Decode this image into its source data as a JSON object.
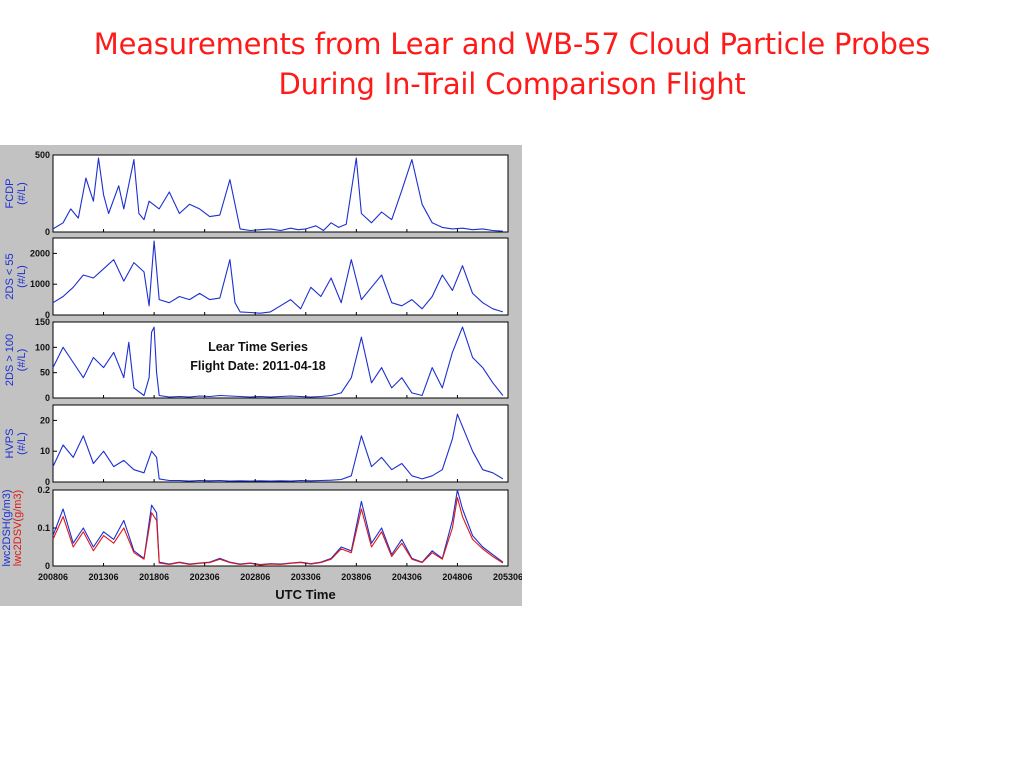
{
  "title": {
    "line1": "Measurements from Lear and WB-57 Cloud Particle Probes",
    "line2": "During In-Trail Comparison Flight"
  },
  "colors": {
    "title": "#ff1a1a",
    "series_blue": "#1d2fd0",
    "series_red": "#e01818",
    "figure_bg": "#c2c2c2"
  },
  "chart_data": {
    "type": "line",
    "annotation": {
      "line1": "Lear Time Series",
      "line2": "Flight Date: 2011-04-18"
    },
    "xlabel": "UTC Time",
    "x_ticks": [
      "200806",
      "201306",
      "201806",
      "202306",
      "202806",
      "203306",
      "203806",
      "204306",
      "204806",
      "205306"
    ],
    "xlim": [
      0,
      9
    ],
    "grid": false,
    "panels": [
      {
        "ylabel_lines": [
          "FCDP",
          "(#/L)"
        ],
        "ylim": [
          0,
          500
        ],
        "yticks": [
          "500",
          "0"
        ],
        "series": [
          {
            "color": "#1d2fd0",
            "x": [
              0,
              0.2,
              0.35,
              0.5,
              0.65,
              0.8,
              0.9,
              1.0,
              1.1,
              1.3,
              1.4,
              1.6,
              1.7,
              1.8,
              1.9,
              2.1,
              2.3,
              2.5,
              2.7,
              2.9,
              3.1,
              3.3,
              3.5,
              3.7,
              3.9,
              4.1,
              4.3,
              4.5,
              4.7,
              4.85,
              5.0,
              5.2,
              5.35,
              5.5,
              5.65,
              5.8,
              6.0,
              6.1,
              6.3,
              6.5,
              6.7,
              6.9,
              7.1,
              7.3,
              7.5,
              7.7,
              7.9,
              8.1,
              8.3,
              8.5,
              8.7,
              8.9
            ],
            "y": [
              20,
              60,
              150,
              90,
              350,
              200,
              480,
              240,
              120,
              300,
              150,
              470,
              120,
              80,
              200,
              150,
              260,
              120,
              180,
              150,
              100,
              110,
              340,
              20,
              10,
              15,
              20,
              10,
              25,
              15,
              20,
              40,
              10,
              60,
              30,
              50,
              480,
              120,
              60,
              130,
              80,
              270,
              470,
              180,
              60,
              30,
              20,
              25,
              15,
              20,
              10,
              5
            ]
          }
        ]
      },
      {
        "ylabel_lines": [
          "2DS < 55",
          "(#/L)"
        ],
        "ylim": [
          0,
          2500
        ],
        "yticks": [
          "2000",
          "1000",
          "0"
        ],
        "series": [
          {
            "color": "#1d2fd0",
            "x": [
              0,
              0.2,
              0.4,
              0.6,
              0.8,
              1.0,
              1.2,
              1.4,
              1.6,
              1.8,
              1.9,
              2.0,
              2.1,
              2.3,
              2.5,
              2.7,
              2.9,
              3.1,
              3.3,
              3.5,
              3.6,
              3.7,
              3.9,
              4.1,
              4.3,
              4.5,
              4.7,
              4.9,
              5.1,
              5.3,
              5.5,
              5.7,
              5.9,
              6.1,
              6.3,
              6.5,
              6.7,
              6.9,
              7.1,
              7.3,
              7.5,
              7.7,
              7.9,
              8.1,
              8.3,
              8.5,
              8.7,
              8.9
            ],
            "y": [
              400,
              600,
              900,
              1300,
              1200,
              1500,
              1800,
              1100,
              1700,
              1400,
              300,
              2400,
              500,
              400,
              600,
              500,
              700,
              500,
              550,
              1800,
              400,
              100,
              80,
              60,
              100,
              300,
              500,
              200,
              900,
              600,
              1200,
              400,
              1800,
              500,
              900,
              1300,
              400,
              300,
              500,
              200,
              600,
              1300,
              800,
              1600,
              700,
              400,
              200,
              100
            ]
          }
        ]
      },
      {
        "ylabel_lines": [
          "2DS > 100",
          "(#/L)"
        ],
        "ylim": [
          0,
          150
        ],
        "yticks": [
          "150",
          "100",
          "50",
          "0"
        ],
        "series": [
          {
            "color": "#1d2fd0",
            "x": [
              0,
              0.2,
              0.4,
              0.6,
              0.8,
              1.0,
              1.2,
              1.4,
              1.5,
              1.6,
              1.8,
              1.9,
              1.95,
              2.0,
              2.05,
              2.1,
              2.3,
              2.5,
              2.7,
              2.9,
              3.1,
              3.3,
              3.5,
              3.7,
              3.9,
              4.1,
              4.3,
              4.5,
              4.7,
              4.9,
              5.1,
              5.3,
              5.5,
              5.7,
              5.9,
              6.1,
              6.3,
              6.5,
              6.7,
              6.9,
              7.1,
              7.3,
              7.5,
              7.7,
              7.9,
              8.1,
              8.3,
              8.5,
              8.7,
              8.9
            ],
            "y": [
              60,
              100,
              70,
              40,
              80,
              60,
              90,
              40,
              110,
              20,
              5,
              40,
              130,
              140,
              50,
              5,
              2,
              3,
              2,
              4,
              3,
              5,
              4,
              3,
              2,
              3,
              2,
              3,
              4,
              3,
              2,
              3,
              5,
              10,
              40,
              120,
              30,
              60,
              20,
              40,
              10,
              5,
              60,
              20,
              90,
              140,
              80,
              60,
              30,
              5
            ]
          }
        ]
      },
      {
        "ylabel_lines": [
          "HVPS",
          "(#/L)"
        ],
        "ylim": [
          0,
          25
        ],
        "yticks": [
          "20",
          "10",
          "0"
        ],
        "series": [
          {
            "color": "#1d2fd0",
            "x": [
              0,
              0.2,
              0.4,
              0.6,
              0.8,
              1.0,
              1.2,
              1.4,
              1.6,
              1.8,
              1.95,
              2.05,
              2.1,
              2.3,
              2.5,
              2.7,
              2.9,
              3.1,
              3.3,
              3.5,
              3.7,
              3.9,
              4.1,
              4.3,
              4.5,
              4.7,
              4.9,
              5.1,
              5.3,
              5.5,
              5.7,
              5.9,
              6.1,
              6.3,
              6.5,
              6.7,
              6.9,
              7.1,
              7.3,
              7.5,
              7.7,
              7.9,
              8.0,
              8.1,
              8.3,
              8.5,
              8.7,
              8.9
            ],
            "y": [
              5,
              12,
              8,
              15,
              6,
              10,
              5,
              7,
              4,
              3,
              10,
              8,
              1,
              0.5,
              0.5,
              0.3,
              0.5,
              0.4,
              0.5,
              0.3,
              0.4,
              0.3,
              0.4,
              0.3,
              0.4,
              0.3,
              0.5,
              0.4,
              0.5,
              0.6,
              0.8,
              2,
              15,
              5,
              8,
              4,
              6,
              2,
              1,
              2,
              4,
              14,
              22,
              18,
              10,
              4,
              3,
              1
            ]
          }
        ]
      },
      {
        "ylabel_lines": [
          "lwc2DSH(g/m3)",
          "lwc2DSV(g/m3)"
        ],
        "ylabel_colors": [
          "#1d2fd0",
          "#e01818"
        ],
        "ylim": [
          0,
          0.2
        ],
        "yticks": [
          "0.2",
          "0.1",
          "0"
        ],
        "series": [
          {
            "color": "#1d2fd0",
            "x": [
              0,
              0.2,
              0.4,
              0.6,
              0.8,
              1.0,
              1.2,
              1.4,
              1.6,
              1.8,
              1.95,
              2.05,
              2.1,
              2.3,
              2.5,
              2.7,
              2.9,
              3.1,
              3.3,
              3.5,
              3.7,
              3.9,
              4.1,
              4.3,
              4.5,
              4.7,
              4.9,
              5.1,
              5.3,
              5.5,
              5.7,
              5.9,
              6.1,
              6.3,
              6.5,
              6.7,
              6.9,
              7.1,
              7.3,
              7.5,
              7.7,
              7.9,
              8.0,
              8.1,
              8.3,
              8.5,
              8.7,
              8.9
            ],
            "y": [
              0.08,
              0.15,
              0.06,
              0.1,
              0.05,
              0.09,
              0.07,
              0.12,
              0.04,
              0.02,
              0.16,
              0.14,
              0.01,
              0.005,
              0.01,
              0.005,
              0.008,
              0.01,
              0.02,
              0.01,
              0.005,
              0.008,
              0.004,
              0.006,
              0.005,
              0.008,
              0.01,
              0.006,
              0.01,
              0.02,
              0.05,
              0.04,
              0.17,
              0.06,
              0.1,
              0.03,
              0.07,
              0.02,
              0.01,
              0.04,
              0.02,
              0.12,
              0.2,
              0.15,
              0.08,
              0.05,
              0.03,
              0.01
            ]
          },
          {
            "color": "#e01818",
            "x": [
              0,
              0.2,
              0.4,
              0.6,
              0.8,
              1.0,
              1.2,
              1.4,
              1.6,
              1.8,
              1.95,
              2.05,
              2.1,
              2.3,
              2.5,
              2.7,
              2.9,
              3.1,
              3.3,
              3.5,
              3.7,
              3.9,
              4.1,
              4.3,
              4.5,
              4.7,
              4.9,
              5.1,
              5.3,
              5.5,
              5.7,
              5.9,
              6.1,
              6.3,
              6.5,
              6.7,
              6.9,
              7.1,
              7.3,
              7.5,
              7.7,
              7.9,
              8.0,
              8.1,
              8.3,
              8.5,
              8.7,
              8.9
            ],
            "y": [
              0.07,
              0.13,
              0.05,
              0.09,
              0.04,
              0.08,
              0.06,
              0.1,
              0.035,
              0.018,
              0.14,
              0.12,
              0.008,
              0.004,
              0.009,
              0.004,
              0.007,
              0.009,
              0.018,
              0.009,
              0.004,
              0.007,
              0.003,
              0.005,
              0.004,
              0.007,
              0.009,
              0.005,
              0.009,
              0.018,
              0.045,
              0.035,
              0.15,
              0.05,
              0.09,
              0.025,
              0.06,
              0.018,
              0.009,
              0.035,
              0.018,
              0.1,
              0.18,
              0.13,
              0.07,
              0.045,
              0.025,
              0.008
            ]
          }
        ]
      }
    ]
  }
}
